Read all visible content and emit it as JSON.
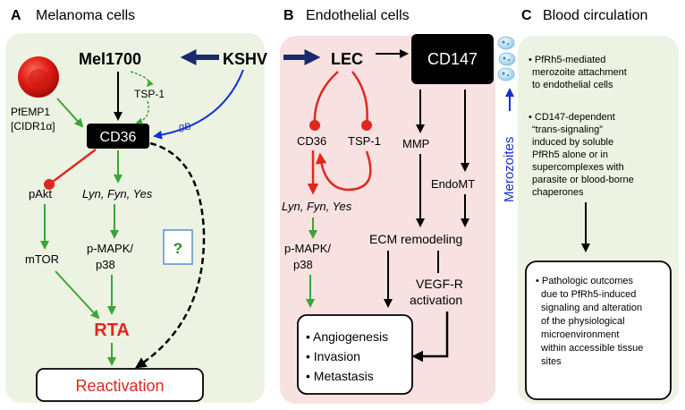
{
  "panels": {
    "a": {
      "letter": "A",
      "title": "Melanoma cells",
      "bg": "#edf3e3"
    },
    "b": {
      "letter": "B",
      "title": "Endothelial cells",
      "bg": "#f7e1e1"
    },
    "c": {
      "letter": "C",
      "title": "Blood circulation",
      "bg": "#edf3e3"
    }
  },
  "nodes": {
    "kshv": "KSHV",
    "mel1700": "Mel1700",
    "lec": "LEC",
    "cd147": "CD147",
    "tsp1_a": "TSP-1",
    "pfemp1_line1": "PfEMP1",
    "pfemp1_line2": "[CIDR1α]",
    "gb": "gB",
    "cd36_a": "CD36",
    "pakt": "pAkt",
    "lyn_a": "Lyn, Fyn, Yes",
    "mtor": "mTOR",
    "pmapk_a_1": "p-MAPK/",
    "pmapk_a_2": "p38",
    "question": "?",
    "rta": "RTA",
    "reactivation": "Reactivation",
    "cd36_b": "CD36",
    "tsp1_b": "TSP-1",
    "lyn_b": "Lyn, Fyn, Yes",
    "pmapk_b_1": "p-MAPK/",
    "pmapk_b_2": "p38",
    "mmp": "MMP",
    "endomt": "EndoMT",
    "ecm": "ECM remodeling",
    "vegfr_1": "VEGF-R",
    "vegfr_2": "activation",
    "outcome_1": "•  Angiogenesis",
    "outcome_2": "•  Invasion",
    "outcome_3": "•  Metastasis",
    "merozoites": "Merozoites"
  },
  "panel_c": {
    "bullet1": [
      "• PfRh5-mediated",
      "merozoite attachment",
      "to endothelial cells"
    ],
    "bullet2": [
      "• CD147-dependent",
      "“trans-signaling”",
      "induced by soluble",
      "PfRh5 alone or in",
      "supercomplexes with",
      "parasite or blood-borne",
      "chaperones"
    ],
    "bullet3": [
      "•  Pathologic outcomes",
      "due to PfRh5-induced",
      "signaling and alteration",
      "of the physiological",
      "microenvironment",
      "within accessible tissue",
      "sites"
    ]
  },
  "colors": {
    "green_arrow": "#3aa635",
    "red_inhibit": "#e0271f",
    "blue": "#1530d0",
    "navy": "#1a2a6a",
    "black": "#000000",
    "rta_red": "#e0271f",
    "question_green": "#2e8b2e",
    "question_border": "#5b8fd0"
  }
}
